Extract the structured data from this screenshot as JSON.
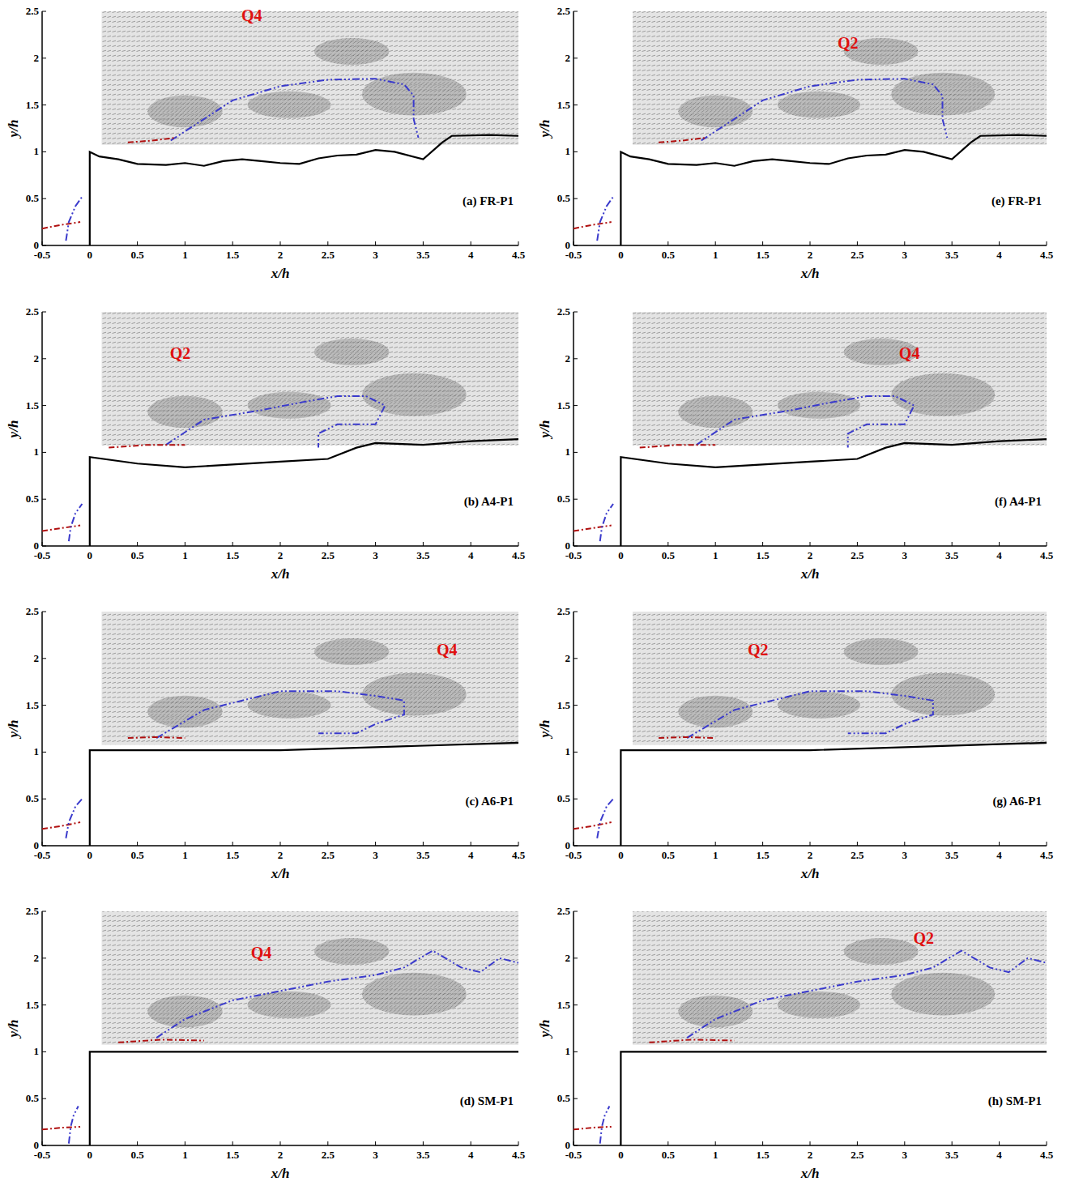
{
  "chart_data": [
    {
      "type": "line",
      "label": "(a) FR-P1",
      "xlabel": "x/h",
      "ylabel": "y/h",
      "xlim": [
        -0.5,
        4.5
      ],
      "ylim": [
        0,
        2.5
      ],
      "xticks": [
        -0.5,
        0,
        0.5,
        1,
        1.5,
        2,
        2.5,
        3,
        3.5,
        4,
        4.5
      ],
      "yticks": [
        0,
        0.5,
        1,
        1.5,
        2,
        2.5
      ],
      "annotations": [
        {
          "text": "Q4",
          "x": 1.7,
          "y": 2.4,
          "color": "#e01010"
        }
      ],
      "series": [
        {
          "color": "#000000",
          "line_style": "solid",
          "x": [
            0,
            0,
            0.1,
            0.3,
            0.5,
            0.8,
            1,
            1.2,
            1.4,
            1.6,
            1.8,
            2,
            2.2,
            2.4,
            2.6,
            2.8,
            3,
            3.2,
            3.5,
            3.7,
            3.8,
            4.2,
            4.5
          ],
          "values": [
            0,
            1,
            0.95,
            0.92,
            0.87,
            0.86,
            0.88,
            0.85,
            0.9,
            0.92,
            0.9,
            0.88,
            0.87,
            0.93,
            0.96,
            0.97,
            1.02,
            1.0,
            0.92,
            1.1,
            1.17,
            1.18,
            1.17
          ]
        },
        {
          "color": "#3a3acc",
          "line_style": "dashed",
          "x": [
            0.85,
            1.2,
            1.5,
            2,
            2.5,
            3,
            3.3,
            3.4,
            3.4,
            3.45
          ],
          "values": [
            1.12,
            1.35,
            1.55,
            1.7,
            1.77,
            1.78,
            1.72,
            1.6,
            1.35,
            1.15
          ]
        },
        {
          "color": "#b01010",
          "line_style": "dashdot",
          "x": [
            0.4,
            0.65,
            0.9
          ],
          "values": [
            1.1,
            1.12,
            1.15
          ]
        },
        {
          "color": "#b01010",
          "line_style": "dashdot",
          "x": [
            -0.5,
            -0.3,
            -0.1
          ],
          "values": [
            0.18,
            0.22,
            0.25
          ]
        },
        {
          "color": "#3a3acc",
          "line_style": "dashed",
          "x": [
            -0.25,
            -0.22,
            -0.15,
            -0.08
          ],
          "values": [
            0.05,
            0.25,
            0.42,
            0.52
          ]
        }
      ]
    },
    {
      "type": "line",
      "label": "(e) FR-P1",
      "xlabel": "x/h",
      "ylabel": "y/h",
      "xlim": [
        -0.5,
        4.5
      ],
      "ylim": [
        0,
        2.5
      ],
      "xticks": [
        -0.5,
        0,
        0.5,
        1,
        1.5,
        2,
        2.5,
        3,
        3.5,
        4,
        4.5
      ],
      "yticks": [
        0,
        0.5,
        1,
        1.5,
        2,
        2.5
      ],
      "annotations": [
        {
          "text": "Q2",
          "x": 2.4,
          "y": 2.1,
          "color": "#e01010"
        }
      ],
      "series": [
        {
          "color": "#000000",
          "line_style": "solid",
          "x": [
            0,
            0,
            0.1,
            0.3,
            0.5,
            0.8,
            1,
            1.2,
            1.4,
            1.6,
            1.8,
            2,
            2.2,
            2.4,
            2.6,
            2.8,
            3,
            3.2,
            3.5,
            3.7,
            3.8,
            4.2,
            4.5
          ],
          "values": [
            0,
            1,
            0.95,
            0.92,
            0.87,
            0.86,
            0.88,
            0.85,
            0.9,
            0.92,
            0.9,
            0.88,
            0.87,
            0.93,
            0.96,
            0.97,
            1.02,
            1.0,
            0.92,
            1.1,
            1.17,
            1.18,
            1.17
          ]
        },
        {
          "color": "#3a3acc",
          "line_style": "dashed",
          "x": [
            0.85,
            1.2,
            1.5,
            2,
            2.5,
            3,
            3.3,
            3.4,
            3.4,
            3.45
          ],
          "values": [
            1.12,
            1.35,
            1.55,
            1.7,
            1.77,
            1.78,
            1.72,
            1.6,
            1.35,
            1.15
          ]
        },
        {
          "color": "#b01010",
          "line_style": "dashdot",
          "x": [
            0.4,
            0.65,
            0.9
          ],
          "values": [
            1.1,
            1.12,
            1.15
          ]
        },
        {
          "color": "#b01010",
          "line_style": "dashdot",
          "x": [
            -0.5,
            -0.3,
            -0.1
          ],
          "values": [
            0.18,
            0.22,
            0.25
          ]
        },
        {
          "color": "#3a3acc",
          "line_style": "dashed",
          "x": [
            -0.25,
            -0.22,
            -0.15,
            -0.08
          ],
          "values": [
            0.05,
            0.25,
            0.42,
            0.52
          ]
        }
      ]
    },
    {
      "type": "line",
      "label": "(b) A4-P1",
      "xlabel": "x/h",
      "ylabel": "y/h",
      "xlim": [
        -0.5,
        4.5
      ],
      "ylim": [
        0,
        2.5
      ],
      "xticks": [
        -0.5,
        0,
        0.5,
        1,
        1.5,
        2,
        2.5,
        3,
        3.5,
        4,
        4.5
      ],
      "yticks": [
        0,
        0.5,
        1,
        1.5,
        2,
        2.5
      ],
      "annotations": [
        {
          "text": "Q2",
          "x": 0.95,
          "y": 2.0,
          "color": "#e01010"
        }
      ],
      "series": [
        {
          "color": "#000000",
          "line_style": "solid",
          "x": [
            0,
            0,
            0.5,
            1,
            1.5,
            2,
            2.5,
            2.8,
            3,
            3.5,
            4,
            4.5
          ],
          "values": [
            0,
            0.95,
            0.88,
            0.84,
            0.87,
            0.9,
            0.93,
            1.05,
            1.1,
            1.08,
            1.12,
            1.14
          ]
        },
        {
          "color": "#3a3acc",
          "line_style": "dashed",
          "x": [
            0.8,
            1.2,
            1.8,
            2.2,
            2.6,
            2.9,
            3.1,
            3.0,
            2.6,
            2.4,
            2.4
          ],
          "values": [
            1.08,
            1.35,
            1.45,
            1.53,
            1.6,
            1.6,
            1.5,
            1.3,
            1.3,
            1.2,
            1.05
          ]
        },
        {
          "color": "#b01010",
          "line_style": "dashdot",
          "x": [
            0.2,
            0.6,
            1.0
          ],
          "values": [
            1.05,
            1.08,
            1.08
          ]
        },
        {
          "color": "#b01010",
          "line_style": "dashdot",
          "x": [
            -0.5,
            -0.3,
            -0.1
          ],
          "values": [
            0.16,
            0.19,
            0.22
          ]
        },
        {
          "color": "#3a3acc",
          "line_style": "dashed",
          "x": [
            -0.22,
            -0.2,
            -0.15,
            -0.08
          ],
          "values": [
            0.05,
            0.2,
            0.35,
            0.45
          ]
        }
      ]
    },
    {
      "type": "line",
      "label": "(f) A4-P1",
      "xlabel": "x/h",
      "ylabel": "y/h",
      "xlim": [
        -0.5,
        4.5
      ],
      "ylim": [
        0,
        2.5
      ],
      "xticks": [
        -0.5,
        0,
        0.5,
        1,
        1.5,
        2,
        2.5,
        3,
        3.5,
        4,
        4.5
      ],
      "yticks": [
        0,
        0.5,
        1,
        1.5,
        2,
        2.5
      ],
      "annotations": [
        {
          "text": "Q4",
          "x": 3.05,
          "y": 2.0,
          "color": "#e01010"
        }
      ],
      "series": [
        {
          "color": "#000000",
          "line_style": "solid",
          "x": [
            0,
            0,
            0.5,
            1,
            1.5,
            2,
            2.5,
            2.8,
            3,
            3.5,
            4,
            4.5
          ],
          "values": [
            0,
            0.95,
            0.88,
            0.84,
            0.87,
            0.9,
            0.93,
            1.05,
            1.1,
            1.08,
            1.12,
            1.14
          ]
        },
        {
          "color": "#3a3acc",
          "line_style": "dashed",
          "x": [
            0.8,
            1.2,
            1.8,
            2.2,
            2.6,
            2.9,
            3.1,
            3.0,
            2.6,
            2.4,
            2.4
          ],
          "values": [
            1.08,
            1.35,
            1.45,
            1.53,
            1.6,
            1.6,
            1.5,
            1.3,
            1.3,
            1.2,
            1.05
          ]
        },
        {
          "color": "#b01010",
          "line_style": "dashdot",
          "x": [
            0.2,
            0.6,
            1.0
          ],
          "values": [
            1.05,
            1.08,
            1.08
          ]
        },
        {
          "color": "#b01010",
          "line_style": "dashdot",
          "x": [
            -0.5,
            -0.3,
            -0.1
          ],
          "values": [
            0.16,
            0.19,
            0.22
          ]
        },
        {
          "color": "#3a3acc",
          "line_style": "dashed",
          "x": [
            -0.22,
            -0.2,
            -0.15,
            -0.08
          ],
          "values": [
            0.05,
            0.2,
            0.35,
            0.45
          ]
        }
      ]
    },
    {
      "type": "line",
      "label": "(c) A6-P1",
      "xlabel": "x/h",
      "ylabel": "y/h",
      "xlim": [
        -0.5,
        4.5
      ],
      "ylim": [
        0,
        2.5
      ],
      "xticks": [
        -0.5,
        0,
        0.5,
        1,
        1.5,
        2,
        2.5,
        3,
        3.5,
        4,
        4.5
      ],
      "yticks": [
        0,
        0.5,
        1,
        1.5,
        2,
        2.5
      ],
      "annotations": [
        {
          "text": "Q4",
          "x": 3.75,
          "y": 2.03,
          "color": "#e01010"
        }
      ],
      "series": [
        {
          "color": "#000000",
          "line_style": "solid",
          "x": [
            0,
            0,
            2,
            4.5
          ],
          "values": [
            0,
            1.02,
            1.02,
            1.1
          ]
        },
        {
          "color": "#3a3acc",
          "line_style": "dashed",
          "x": [
            0.7,
            1.2,
            2,
            2.6,
            3,
            3.3,
            3.3,
            3.0,
            2.8,
            2.4
          ],
          "values": [
            1.15,
            1.45,
            1.65,
            1.65,
            1.6,
            1.55,
            1.4,
            1.3,
            1.2,
            1.2
          ]
        },
        {
          "color": "#b01010",
          "line_style": "dashdot",
          "x": [
            0.4,
            0.7,
            1.0
          ],
          "values": [
            1.15,
            1.16,
            1.15
          ]
        },
        {
          "color": "#b01010",
          "line_style": "dashdot",
          "x": [
            -0.5,
            -0.3,
            -0.1
          ],
          "values": [
            0.18,
            0.21,
            0.25
          ]
        },
        {
          "color": "#3a3acc",
          "line_style": "dashed",
          "x": [
            -0.25,
            -0.22,
            -0.15,
            -0.08
          ],
          "values": [
            0.08,
            0.25,
            0.42,
            0.5
          ]
        }
      ]
    },
    {
      "type": "line",
      "label": "(g) A6-P1",
      "xlabel": "x/h",
      "ylabel": "y/h",
      "xlim": [
        -0.5,
        4.5
      ],
      "ylim": [
        0,
        2.5
      ],
      "xticks": [
        -0.5,
        0,
        0.5,
        1,
        1.5,
        2,
        2.5,
        3,
        3.5,
        4,
        4.5
      ],
      "yticks": [
        0,
        0.5,
        1,
        1.5,
        2,
        2.5
      ],
      "annotations": [
        {
          "text": "Q2",
          "x": 1.45,
          "y": 2.03,
          "color": "#e01010"
        }
      ],
      "series": [
        {
          "color": "#000000",
          "line_style": "solid",
          "x": [
            0,
            0,
            2,
            4.5
          ],
          "values": [
            0,
            1.02,
            1.02,
            1.1
          ]
        },
        {
          "color": "#3a3acc",
          "line_style": "dashed",
          "x": [
            0.7,
            1.2,
            2,
            2.6,
            3,
            3.3,
            3.3,
            3.0,
            2.8,
            2.4
          ],
          "values": [
            1.15,
            1.45,
            1.65,
            1.65,
            1.6,
            1.55,
            1.4,
            1.3,
            1.2,
            1.2
          ]
        },
        {
          "color": "#b01010",
          "line_style": "dashdot",
          "x": [
            0.4,
            0.7,
            1.0
          ],
          "values": [
            1.15,
            1.16,
            1.15
          ]
        },
        {
          "color": "#b01010",
          "line_style": "dashdot",
          "x": [
            -0.5,
            -0.3,
            -0.1
          ],
          "values": [
            0.18,
            0.21,
            0.25
          ]
        },
        {
          "color": "#3a3acc",
          "line_style": "dashed",
          "x": [
            -0.25,
            -0.22,
            -0.15,
            -0.08
          ],
          "values": [
            0.08,
            0.25,
            0.42,
            0.5
          ]
        }
      ]
    },
    {
      "type": "line",
      "label": "(d) SM-P1",
      "xlabel": "x/h",
      "ylabel": "y/h",
      "xlim": [
        -0.5,
        4.5
      ],
      "ylim": [
        0,
        2.5
      ],
      "xticks": [
        -0.5,
        0,
        0.5,
        1,
        1.5,
        2,
        2.5,
        3,
        3.5,
        4,
        4.5
      ],
      "yticks": [
        0,
        0.5,
        1,
        1.5,
        2,
        2.5
      ],
      "annotations": [
        {
          "text": "Q4",
          "x": 1.8,
          "y": 2.0,
          "color": "#e01010"
        }
      ],
      "series": [
        {
          "color": "#000000",
          "line_style": "solid",
          "x": [
            0,
            0,
            4.5
          ],
          "values": [
            0,
            1,
            1
          ]
        },
        {
          "color": "#3a3acc",
          "line_style": "dashed",
          "x": [
            0.7,
            1,
            1.5,
            2,
            2.5,
            3,
            3.3,
            3.6,
            3.9,
            4.1,
            4.3,
            4.5
          ],
          "values": [
            1.15,
            1.35,
            1.55,
            1.65,
            1.75,
            1.82,
            1.9,
            2.08,
            1.9,
            1.85,
            2.0,
            1.95
          ]
        },
        {
          "color": "#b01010",
          "line_style": "dashdot",
          "x": [
            0.3,
            0.75,
            1.2
          ],
          "values": [
            1.1,
            1.13,
            1.12
          ]
        },
        {
          "color": "#b01010",
          "line_style": "dashdot",
          "x": [
            -0.5,
            -0.3,
            -0.1
          ],
          "values": [
            0.17,
            0.19,
            0.2
          ]
        },
        {
          "color": "#3a3acc",
          "line_style": "dashed",
          "x": [
            -0.22,
            -0.2,
            -0.17,
            -0.12
          ],
          "values": [
            0.02,
            0.2,
            0.32,
            0.42
          ]
        }
      ]
    },
    {
      "type": "line",
      "label": "(h) SM-P1",
      "xlabel": "x/h",
      "ylabel": "y/h",
      "xlim": [
        -0.5,
        4.5
      ],
      "ylim": [
        0,
        2.5
      ],
      "xticks": [
        -0.5,
        0,
        0.5,
        1,
        1.5,
        2,
        2.5,
        3,
        3.5,
        4,
        4.5
      ],
      "yticks": [
        0,
        0.5,
        1,
        1.5,
        2,
        2.5
      ],
      "annotations": [
        {
          "text": "Q2",
          "x": 3.2,
          "y": 2.15,
          "color": "#e01010"
        }
      ],
      "series": [
        {
          "color": "#000000",
          "line_style": "solid",
          "x": [
            0,
            0,
            4.5
          ],
          "values": [
            0,
            1,
            1
          ]
        },
        {
          "color": "#3a3acc",
          "line_style": "dashed",
          "x": [
            0.7,
            1,
            1.5,
            2,
            2.5,
            3,
            3.3,
            3.6,
            3.9,
            4.1,
            4.3,
            4.5
          ],
          "values": [
            1.15,
            1.35,
            1.55,
            1.65,
            1.75,
            1.82,
            1.9,
            2.08,
            1.9,
            1.85,
            2.0,
            1.95
          ]
        },
        {
          "color": "#b01010",
          "line_style": "dashdot",
          "x": [
            0.3,
            0.75,
            1.2
          ],
          "values": [
            1.1,
            1.13,
            1.12
          ]
        },
        {
          "color": "#b01010",
          "line_style": "dashdot",
          "x": [
            -0.5,
            -0.3,
            -0.1
          ],
          "values": [
            0.17,
            0.19,
            0.2
          ]
        },
        {
          "color": "#3a3acc",
          "line_style": "dashed",
          "x": [
            -0.22,
            -0.2,
            -0.17,
            -0.12
          ],
          "values": [
            0.02,
            0.2,
            0.32,
            0.42
          ]
        }
      ]
    }
  ]
}
